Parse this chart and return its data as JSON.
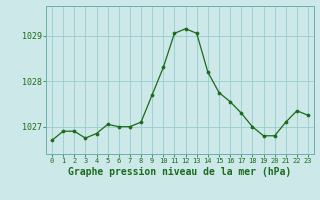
{
  "x": [
    0,
    1,
    2,
    3,
    4,
    5,
    6,
    7,
    8,
    9,
    10,
    11,
    12,
    13,
    14,
    15,
    16,
    17,
    18,
    19,
    20,
    21,
    22,
    23
  ],
  "y": [
    1026.7,
    1026.9,
    1026.9,
    1026.75,
    1026.85,
    1027.05,
    1027.0,
    1027.0,
    1027.1,
    1027.7,
    1028.3,
    1029.05,
    1029.15,
    1029.05,
    1028.2,
    1027.75,
    1027.55,
    1027.3,
    1027.0,
    1026.8,
    1026.8,
    1027.1,
    1027.35,
    1027.25
  ],
  "line_color": "#1a6b1a",
  "marker_color": "#1a6b1a",
  "bg_color": "#cce8e8",
  "grid_color": "#99cccc",
  "ylabel_ticks": [
    1027,
    1028,
    1029
  ],
  "ylim": [
    1026.4,
    1029.65
  ],
  "xlabel": "Graphe pression niveau de la mer (hPa)",
  "tick_label_color": "#1a6b1a",
  "xlabel_color": "#1a6b1a",
  "xtick_fontsize": 5.0,
  "ytick_fontsize": 6.0,
  "xlabel_fontsize": 7.0
}
